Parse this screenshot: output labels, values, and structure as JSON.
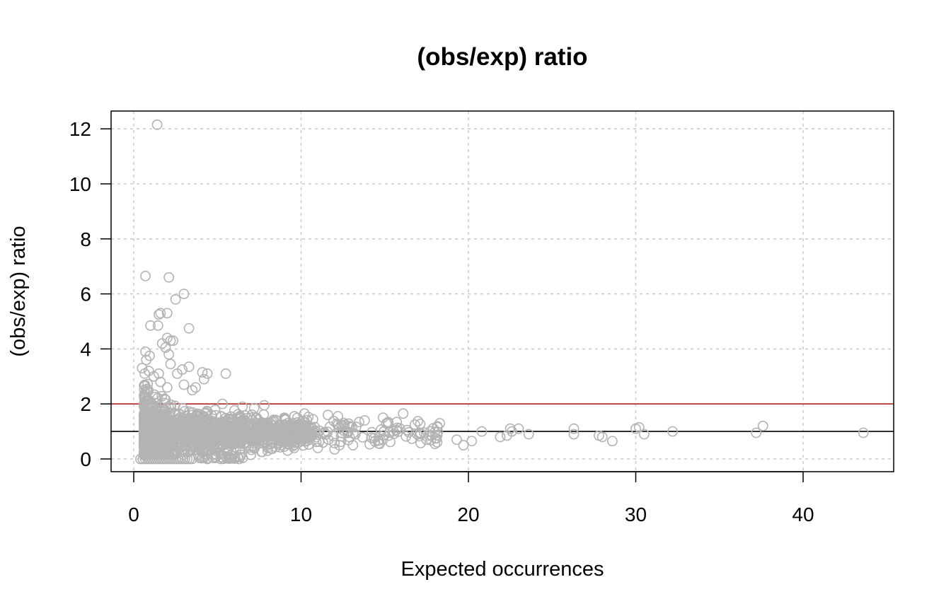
{
  "chart_data": {
    "type": "scatter",
    "title": "(obs/exp) ratio",
    "xlabel": "Expected occurrences",
    "ylabel": "(obs/exp) ratio",
    "xlim": [
      -1.35,
      45.5
    ],
    "ylim": [
      -0.45,
      12.65
    ],
    "x_ticks": [
      0,
      10,
      20,
      30,
      40
    ],
    "x_tick_labels": [
      "0",
      "10",
      "20",
      "30",
      "40"
    ],
    "y_ticks": [
      0,
      2,
      4,
      6,
      8,
      10,
      12
    ],
    "y_tick_labels": [
      "0",
      "2",
      "4",
      "6",
      "8",
      "10",
      "12"
    ],
    "grid": true,
    "marker": "open-circle",
    "point_color": "#b3b3b3",
    "reference_lines": [
      {
        "y": 2,
        "color": "#b22222"
      },
      {
        "y": 1,
        "color": "#000000"
      }
    ],
    "points": [
      [
        1.4,
        12.15
      ],
      [
        0.7,
        6.65
      ],
      [
        2.1,
        6.6
      ],
      [
        3.0,
        6.0
      ],
      [
        2.5,
        5.8
      ],
      [
        1.5,
        5.25
      ],
      [
        1.6,
        5.3
      ],
      [
        2.0,
        5.3
      ],
      [
        1.0,
        4.85
      ],
      [
        1.45,
        4.85
      ],
      [
        3.3,
        4.75
      ],
      [
        2.0,
        4.4
      ],
      [
        2.2,
        4.3
      ],
      [
        1.7,
        4.2
      ],
      [
        2.35,
        4.3
      ],
      [
        1.9,
        4.05
      ],
      [
        0.7,
        3.9
      ],
      [
        2.1,
        3.8
      ],
      [
        0.95,
        3.75
      ],
      [
        0.75,
        3.6
      ],
      [
        2.2,
        3.45
      ],
      [
        3.3,
        3.35
      ],
      [
        2.9,
        3.25
      ],
      [
        0.5,
        3.3
      ],
      [
        4.1,
        3.15
      ],
      [
        4.4,
        3.1
      ],
      [
        5.5,
        3.1
      ],
      [
        1.5,
        3.1
      ],
      [
        0.9,
        3.2
      ],
      [
        2.6,
        3.1
      ],
      [
        1.2,
        3.0
      ],
      [
        4.2,
        2.9
      ],
      [
        1.6,
        2.8
      ],
      [
        3.7,
        2.6
      ],
      [
        0.8,
        2.45
      ],
      [
        2.0,
        2.6
      ],
      [
        3.5,
        2.5
      ],
      [
        3.0,
        2.7
      ],
      [
        14.9,
        1.5
      ],
      [
        16.1,
        1.65
      ],
      [
        15.2,
        1.3
      ],
      [
        10.2,
        1.65
      ],
      [
        11.6,
        1.6
      ],
      [
        12.2,
        1.55
      ],
      [
        7.8,
        1.95
      ],
      [
        7.2,
        1.85
      ],
      [
        6.5,
        1.9
      ],
      [
        5.3,
        2.0
      ],
      [
        9.0,
        1.5
      ],
      [
        9.6,
        1.55
      ],
      [
        17.1,
        0.95
      ],
      [
        18.1,
        0.75
      ],
      [
        19.3,
        0.7
      ],
      [
        19.7,
        0.5
      ],
      [
        20.2,
        0.65
      ],
      [
        20.8,
        1.0
      ],
      [
        21.9,
        0.8
      ],
      [
        22.3,
        0.85
      ],
      [
        22.5,
        1.1
      ],
      [
        22.6,
        1.0
      ],
      [
        23.0,
        1.1
      ],
      [
        23.6,
        0.9
      ],
      [
        26.3,
        1.1
      ],
      [
        26.3,
        0.9
      ],
      [
        27.8,
        0.85
      ],
      [
        28.0,
        0.8
      ],
      [
        28.6,
        0.65
      ],
      [
        30.0,
        1.1
      ],
      [
        30.2,
        1.15
      ],
      [
        30.5,
        0.9
      ],
      [
        32.2,
        1.0
      ],
      [
        37.2,
        0.95
      ],
      [
        37.6,
        1.2
      ],
      [
        43.6,
        0.95
      ],
      [
        14.7,
        0.55
      ],
      [
        17.5,
        0.7
      ],
      [
        18.0,
        0.55
      ],
      [
        16.8,
        1.25
      ],
      [
        15.7,
        1.05
      ],
      [
        13.8,
        1.4
      ],
      [
        12.5,
        1.2
      ],
      [
        11.0,
        0.4
      ],
      [
        12.0,
        0.35
      ],
      [
        13.1,
        0.5
      ],
      [
        9.0,
        0.45
      ],
      [
        8.0,
        0.3
      ],
      [
        6.3,
        0.0
      ],
      [
        5.8,
        0.05
      ],
      [
        5.2,
        0.0
      ],
      [
        4.4,
        0.0
      ],
      [
        7.0,
        0.15
      ]
    ],
    "dense_region": {
      "cluster": {
        "x_range": [
          0.6,
          10.5
        ],
        "y_center": 0.95
      },
      "zero_row": {
        "x_range": [
          0.4,
          3.6
        ],
        "y": 0
      }
    }
  }
}
